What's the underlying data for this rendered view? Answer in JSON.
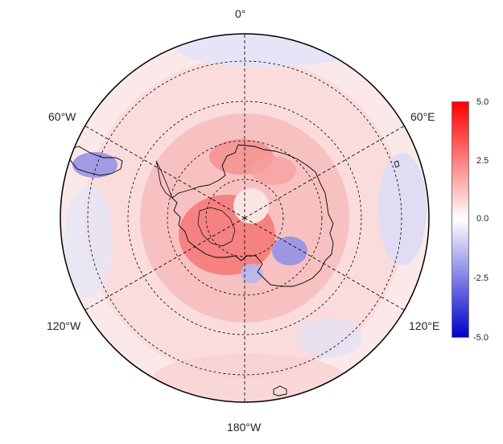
{
  "map": {
    "projection": "south-polar-stereographic",
    "longitude_labels": {
      "top": "0°",
      "upper_left": "60°W",
      "upper_right": "60°E",
      "lower_left": "120°W",
      "lower_right": "120°E",
      "bottom": "180°W"
    },
    "meridians_deg": [
      0,
      60,
      120,
      180,
      240,
      300
    ],
    "latitude_circles": 4,
    "colors": {
      "positive": "#ff0000",
      "neutral": "#ffffff",
      "negative": "#0000cc",
      "coastline": "#000000",
      "graticule": "#000000"
    }
  },
  "colorbar": {
    "min": -5.0,
    "max": 5.0,
    "ticks": [
      "5.0",
      "2.5",
      "0.0",
      "-2.5",
      "-5.0"
    ]
  }
}
